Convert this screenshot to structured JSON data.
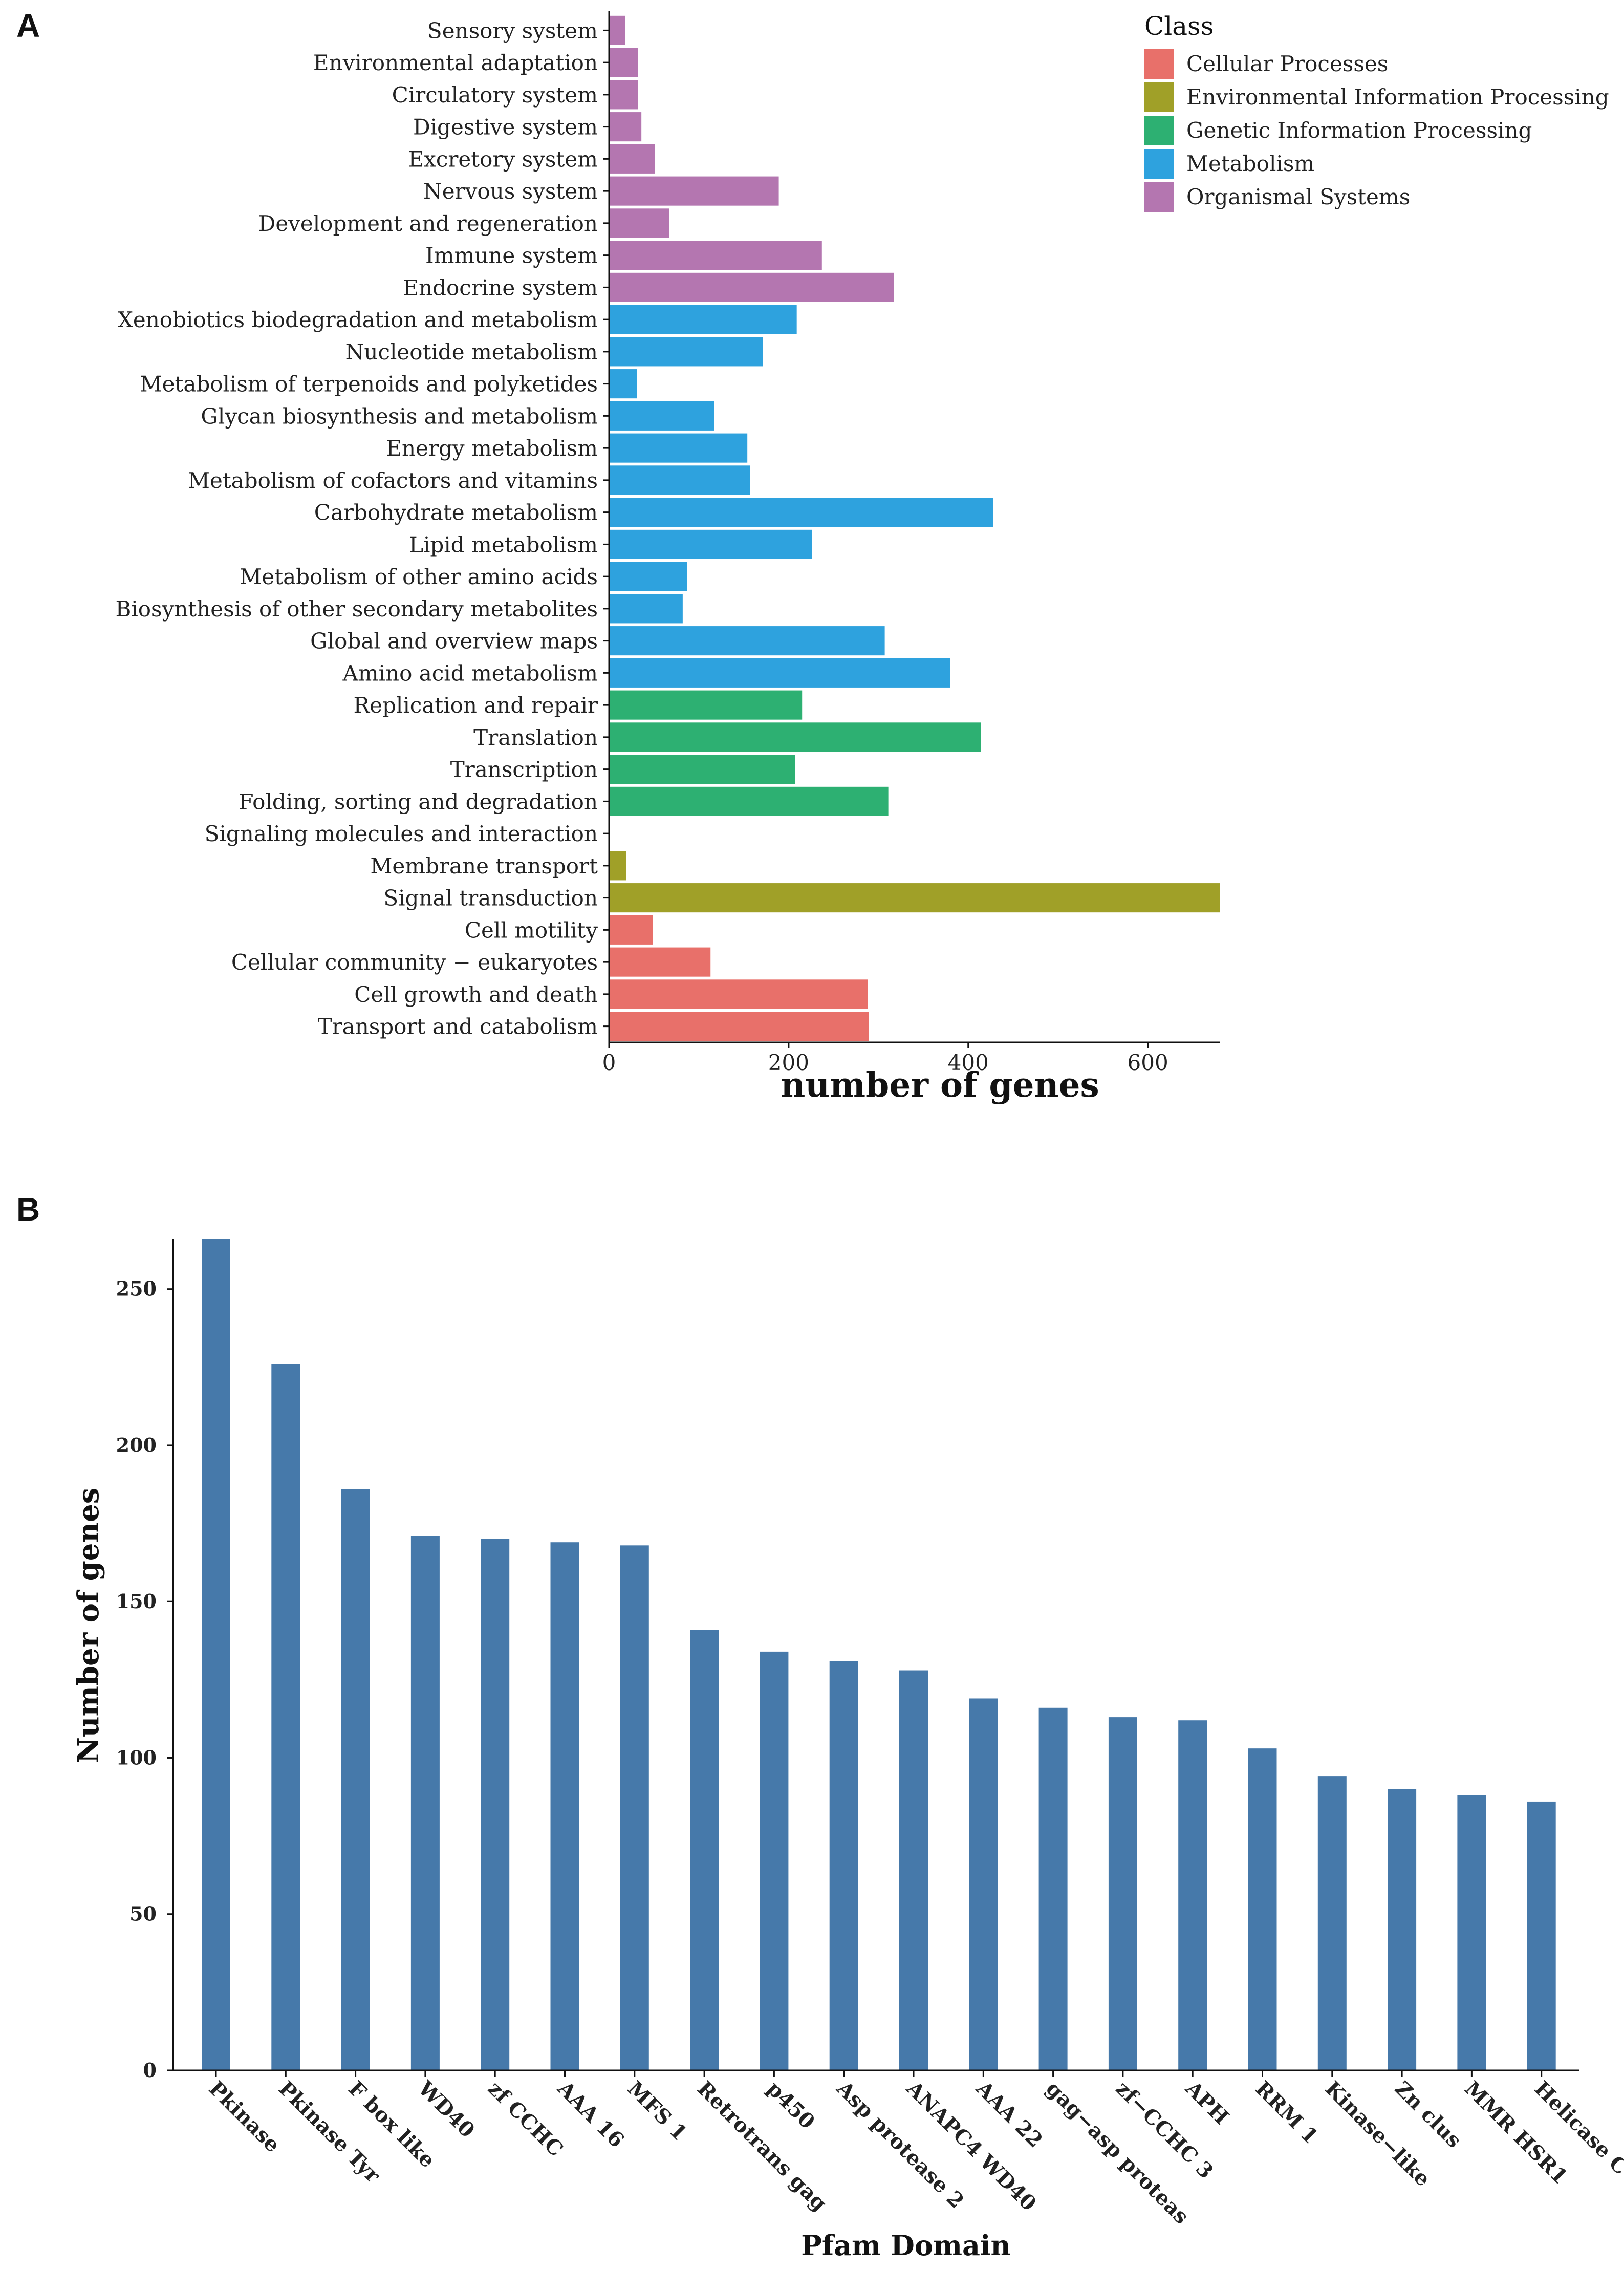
{
  "panels": {
    "a": {
      "label": "A"
    },
    "b": {
      "label": "B"
    }
  },
  "chart_data": [
    {
      "type": "bar",
      "orientation": "horizontal",
      "panel": "A",
      "xlabel": "number of genes",
      "ylabel": "",
      "xlim": [
        0,
        680
      ],
      "xticks": [
        0,
        200,
        400,
        600
      ],
      "xtick_labels": [
        "0",
        "200",
        "400",
        "600"
      ],
      "grid": false,
      "legend": {
        "title": "Class",
        "placement": "top-right",
        "entries": [
          {
            "name": "Cellular Processes",
            "color": "#E8706A"
          },
          {
            "name": "Environmental Information Processing",
            "color": "#A0A028"
          },
          {
            "name": "Genetic Information Processing",
            "color": "#2DB072"
          },
          {
            "name": "Metabolism",
            "color": "#2EA2DE"
          },
          {
            "name": "Organismal Systems",
            "color": "#B476B0"
          }
        ]
      },
      "bars": [
        {
          "label": "Sensory system",
          "value": 18,
          "class": 4
        },
        {
          "label": "Environmental adaptation",
          "value": 32,
          "class": 4
        },
        {
          "label": "Circulatory system",
          "value": 32,
          "class": 4
        },
        {
          "label": "Digestive system",
          "value": 36,
          "class": 4
        },
        {
          "label": "Excretory system",
          "value": 51,
          "class": 4
        },
        {
          "label": "Nervous system",
          "value": 189,
          "class": 4
        },
        {
          "label": "Development and regeneration",
          "value": 67,
          "class": 4
        },
        {
          "label": "Immune system",
          "value": 237,
          "class": 4
        },
        {
          "label": "Endocrine system",
          "value": 317,
          "class": 4
        },
        {
          "label": "Xenobiotics biodegradation and metabolism",
          "value": 209,
          "class": 3
        },
        {
          "label": "Nucleotide metabolism",
          "value": 171,
          "class": 3
        },
        {
          "label": "Metabolism of terpenoids and polyketides",
          "value": 31,
          "class": 3
        },
        {
          "label": "Glycan biosynthesis and metabolism",
          "value": 117,
          "class": 3
        },
        {
          "label": "Energy metabolism",
          "value": 154,
          "class": 3
        },
        {
          "label": "Metabolism of cofactors and vitamins",
          "value": 157,
          "class": 3
        },
        {
          "label": "Carbohydrate metabolism",
          "value": 428,
          "class": 3
        },
        {
          "label": "Lipid metabolism",
          "value": 226,
          "class": 3
        },
        {
          "label": "Metabolism of other amino acids",
          "value": 87,
          "class": 3
        },
        {
          "label": "Biosynthesis of other secondary metabolites",
          "value": 82,
          "class": 3
        },
        {
          "label": "Global and overview maps",
          "value": 307,
          "class": 3
        },
        {
          "label": "Amino acid metabolism",
          "value": 380,
          "class": 3
        },
        {
          "label": "Replication and repair",
          "value": 215,
          "class": 2
        },
        {
          "label": "Translation",
          "value": 414,
          "class": 2
        },
        {
          "label": "Transcription",
          "value": 207,
          "class": 2
        },
        {
          "label": "Folding, sorting and degradation",
          "value": 311,
          "class": 2
        },
        {
          "label": "Signaling molecules and interaction",
          "value": 1,
          "class": 1
        },
        {
          "label": "Membrane transport",
          "value": 19,
          "class": 1
        },
        {
          "label": "Signal transduction",
          "value": 680,
          "class": 1
        },
        {
          "label": "Cell motility",
          "value": 49,
          "class": 0
        },
        {
          "label": "Cellular community − eukaryotes",
          "value": 113,
          "class": 0
        },
        {
          "label": "Cell growth and death",
          "value": 288,
          "class": 0
        },
        {
          "label": "Transport and catabolism",
          "value": 289,
          "class": 0
        }
      ]
    },
    {
      "type": "bar",
      "panel": "B",
      "xlabel": "Pfam Domain",
      "ylabel": "Number of genes",
      "ylim": [
        0,
        266
      ],
      "yticks": [
        0,
        50,
        100,
        150,
        200,
        250
      ],
      "ytick_labels": [
        "0",
        "50",
        "100",
        "150",
        "200",
        "250"
      ],
      "grid": false,
      "color": "#4679AA",
      "categories": [
        "Pkinase",
        "Pkinase Tyr",
        "F box like",
        "WD40",
        "zf CCHC",
        "AAA 16",
        "MFS 1",
        "Retrotrans gag",
        "p450",
        "Asp protease 2",
        "ANAPC4 WD40",
        "AAA 22",
        "gag−asp proteas",
        "zf−CCHC 3",
        "APH",
        "RRM 1",
        "Kinase−like",
        "Zn clus",
        "MMR HSR1",
        "Helicase C"
      ],
      "values": [
        266,
        226,
        186,
        171,
        170,
        169,
        168,
        141,
        134,
        131,
        128,
        119,
        116,
        113,
        112,
        103,
        94,
        90,
        88,
        86
      ]
    }
  ]
}
